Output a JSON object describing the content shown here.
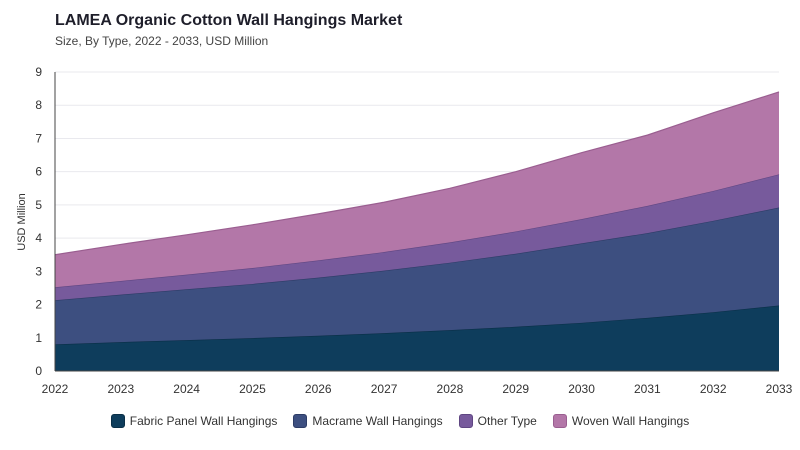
{
  "chart_data": {
    "type": "area",
    "stacked": true,
    "title": "LAMEA Organic Cotton Wall Hangings Market",
    "subtitle": "Size, By Type, 2022 - 2033, USD Million",
    "xlabel": "",
    "ylabel": "USD Million",
    "ylim": [
      0,
      9
    ],
    "yticks": [
      0,
      1,
      2,
      3,
      4,
      5,
      6,
      7,
      8,
      9
    ],
    "grid": true,
    "legend_position": "bottom",
    "x": [
      "2022",
      "2023",
      "2024",
      "2025",
      "2026",
      "2027",
      "2028",
      "2029",
      "2030",
      "2031",
      "2032",
      "2033"
    ],
    "series": [
      {
        "name": "Fabric Panel Wall Hangings",
        "color": "#0e3d5c",
        "stroke": "#0a2f47",
        "values": [
          0.8,
          0.87,
          0.93,
          0.99,
          1.06,
          1.14,
          1.23,
          1.33,
          1.45,
          1.6,
          1.77,
          1.97
        ]
      },
      {
        "name": "Macrame Wall Hangings",
        "color": "#3d4f80",
        "stroke": "#2d3c66",
        "values": [
          1.33,
          1.43,
          1.53,
          1.63,
          1.75,
          1.88,
          2.03,
          2.2,
          2.39,
          2.55,
          2.75,
          2.95
        ]
      },
      {
        "name": "Other Type",
        "color": "#775a9c",
        "stroke": "#5f4682",
        "values": [
          0.39,
          0.41,
          0.44,
          0.48,
          0.52,
          0.56,
          0.61,
          0.67,
          0.73,
          0.82,
          0.9,
          1.0
        ]
      },
      {
        "name": "Woven Wall Hangings",
        "color": "#b377a8",
        "stroke": "#9a5e90",
        "values": [
          0.98,
          1.1,
          1.2,
          1.3,
          1.4,
          1.5,
          1.63,
          1.8,
          2.0,
          2.13,
          2.35,
          2.48
        ]
      }
    ]
  }
}
